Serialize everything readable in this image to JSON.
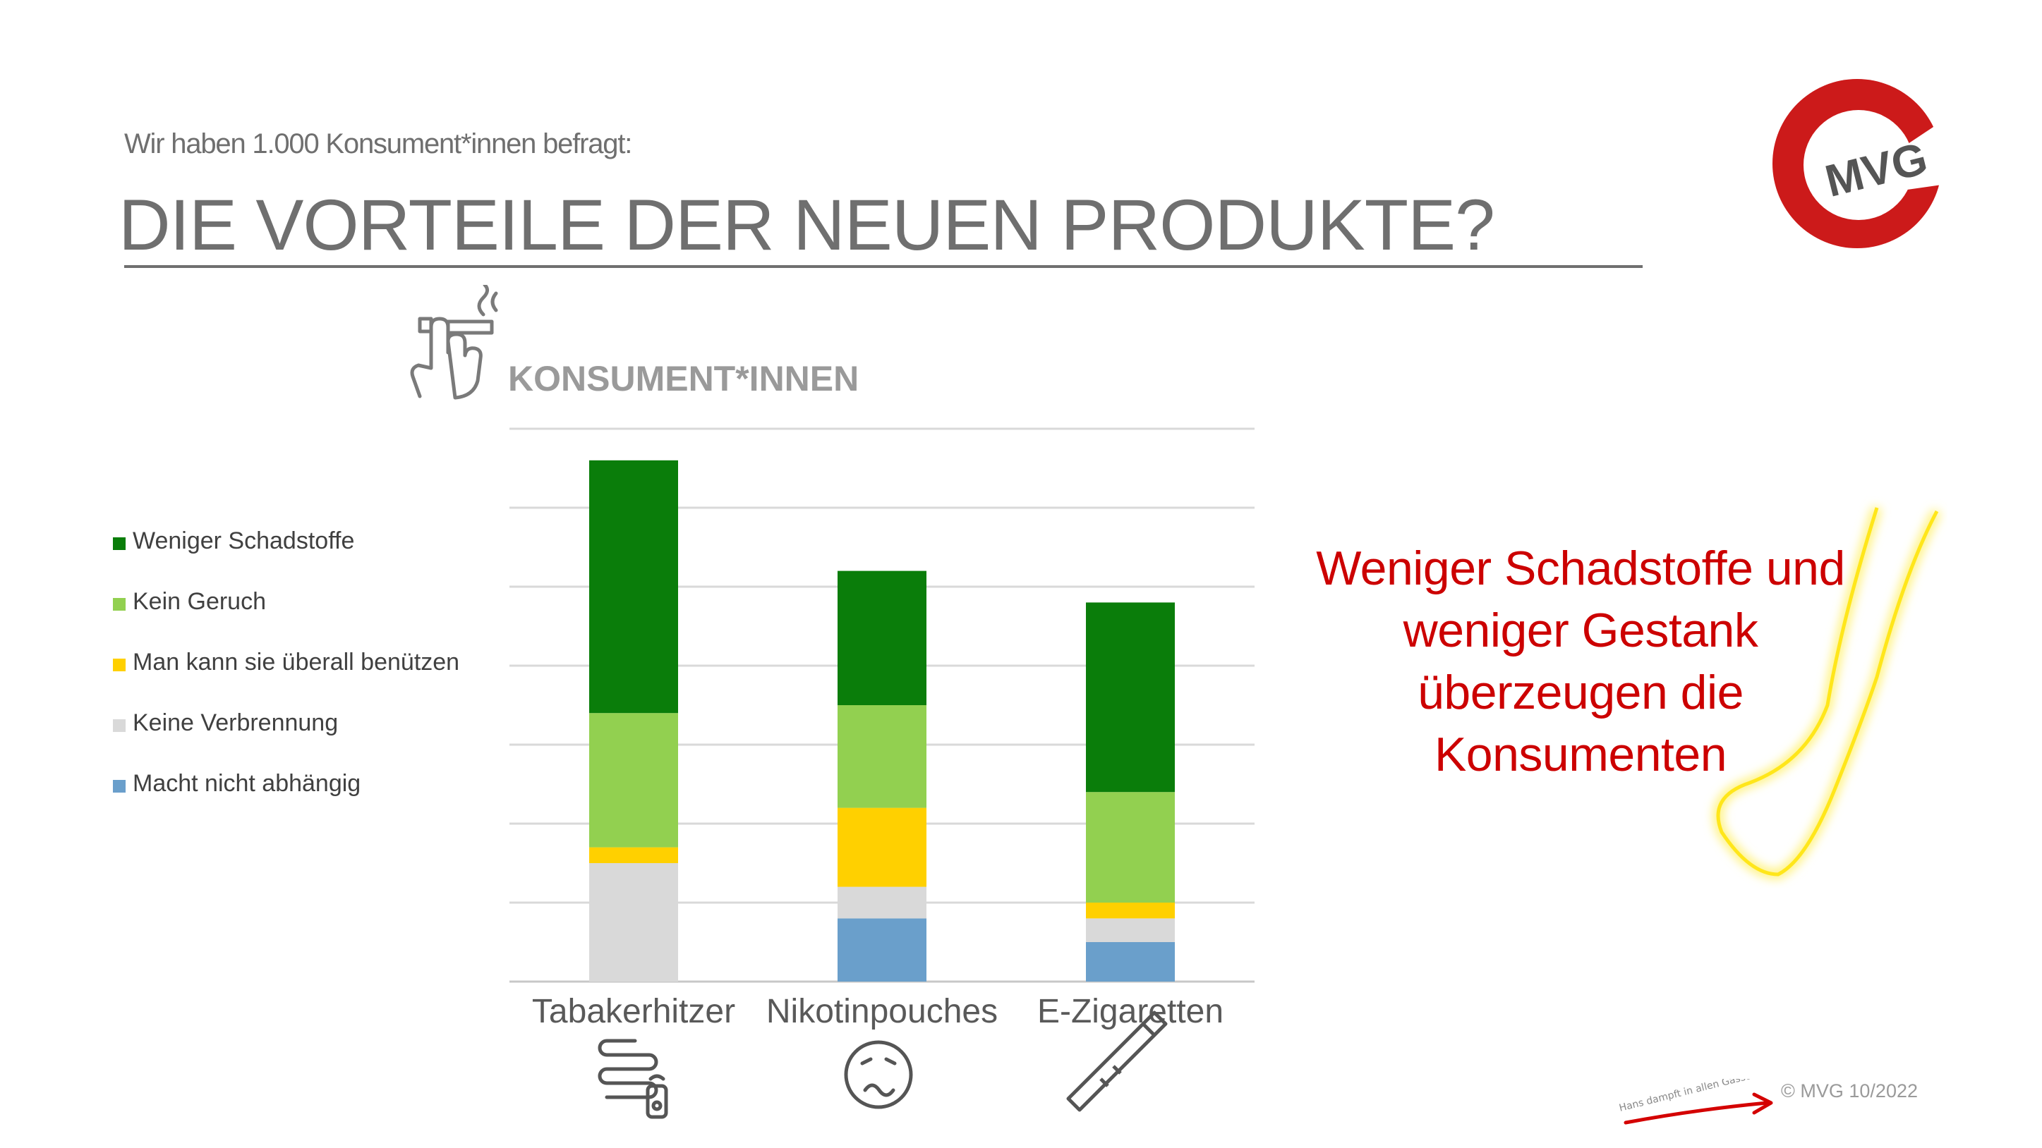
{
  "header": {
    "subtitle": "Wir haben 1.000 Konsument*innen befragt:",
    "title": "DIE VORTEILE DER NEUEN PRODUKTE?"
  },
  "logo": {
    "text": "MVG",
    "color": "#cc1a1a"
  },
  "chart_heading": "KONSUMENT*INNEN",
  "callout": {
    "lines": [
      "Weniger Schadstoffe und",
      "weniger Gestank",
      "überzeugen die",
      "Konsumenten"
    ],
    "color": "#cc0000"
  },
  "footer": {
    "copyright": "© MVG 10/2022",
    "handwritten_note": "Hans dampft in allen Gassen"
  },
  "icons": {
    "heading": "hand-cigarette-icon",
    "categories": [
      "heated-tobacco-device-icon",
      "queasy-face-icon",
      "e-cigarette-icon"
    ]
  },
  "chart_data": {
    "type": "bar",
    "stacked": true,
    "categories": [
      "Tabakerhitzer",
      "Nikotinpouches",
      "E-Zigaretten"
    ],
    "ylim": [
      0,
      70
    ],
    "grid": true,
    "legend_position": "left",
    "series": [
      {
        "name": "Macht nicht abhängig",
        "color": "#6a9fcb",
        "values": [
          0,
          8,
          5
        ]
      },
      {
        "name": "Keine Verbrennung",
        "color": "#d9d9d9",
        "values": [
          15,
          4,
          3
        ]
      },
      {
        "name": "Man kann sie überall benützen",
        "color": "#ffd000",
        "values": [
          2,
          10,
          2
        ]
      },
      {
        "name": "Kein Geruch",
        "color": "#92d050",
        "values": [
          17,
          13,
          14
        ]
      },
      {
        "name": "Weniger Schadstoffe",
        "color": "#0a7d0a",
        "values": [
          32,
          17,
          24
        ]
      }
    ]
  }
}
